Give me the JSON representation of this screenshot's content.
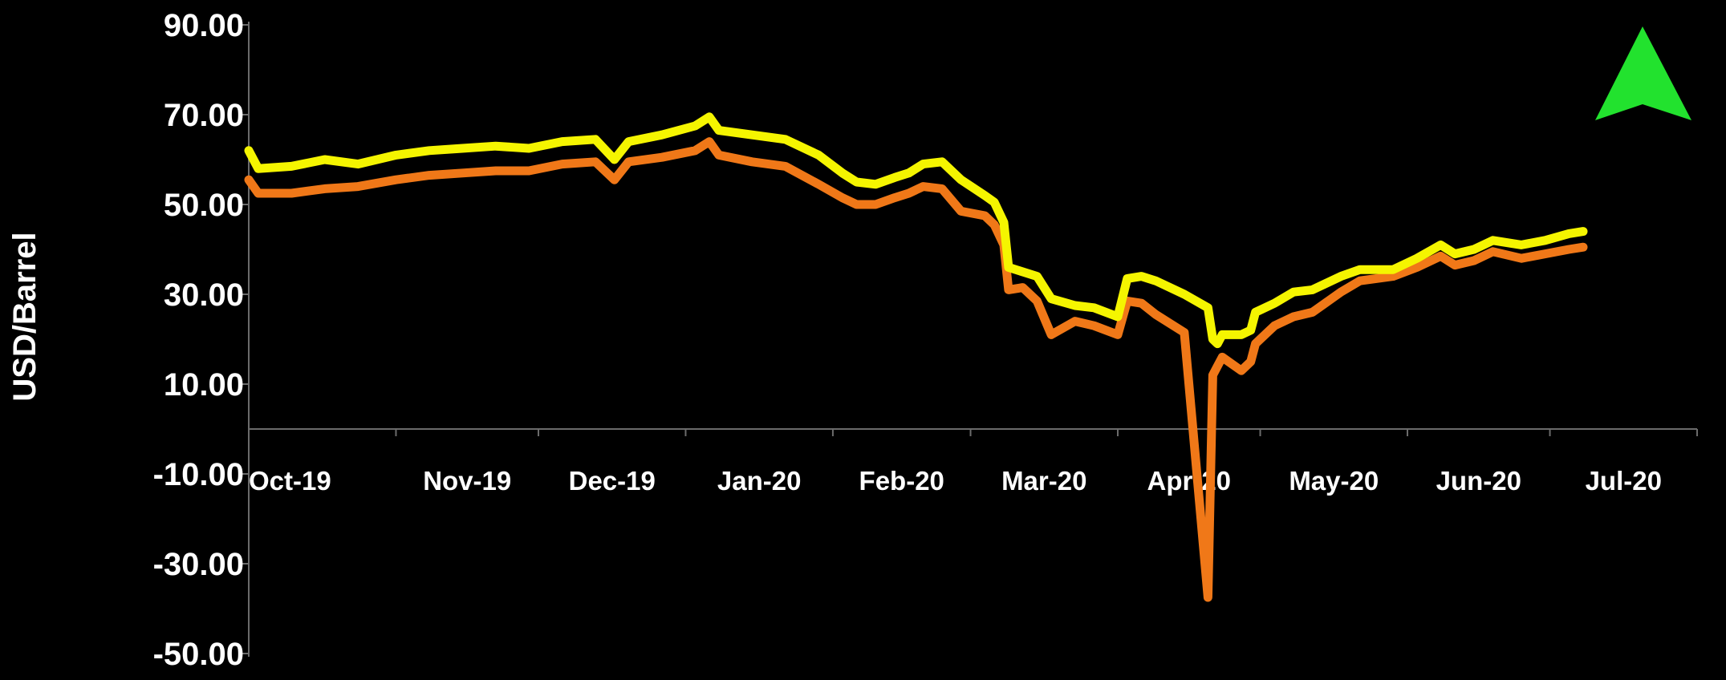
{
  "chart_data": {
    "type": "line",
    "title": "",
    "xlabel": "",
    "ylabel": "USD/Barrel",
    "ylim": [
      -50,
      90
    ],
    "yticks": [
      "90.00",
      "70.00",
      "50.00",
      "30.00",
      "10.00",
      "-10.00",
      "-30.00",
      "-50.00"
    ],
    "ytick_values": [
      90,
      70,
      50,
      30,
      10,
      -10,
      -30,
      -50
    ],
    "xticks": [
      "Oct-19",
      "Nov-19",
      "Dec-19",
      "Jan-20",
      "Feb-20",
      "Mar-20",
      "Apr-20",
      "May-20",
      "Jun-20",
      "Jul-20"
    ],
    "x_domain": [
      "2019-10-01",
      "2020-08-01"
    ],
    "grid": false,
    "legend": "none",
    "series": [
      {
        "color": "#f5f500",
        "points": [
          [
            "2019-10-01",
            62
          ],
          [
            "2019-10-03",
            58
          ],
          [
            "2019-10-10",
            58.5
          ],
          [
            "2019-10-17",
            60
          ],
          [
            "2019-10-24",
            59
          ],
          [
            "2019-11-01",
            61
          ],
          [
            "2019-11-08",
            62
          ],
          [
            "2019-11-15",
            62.5
          ],
          [
            "2019-11-22",
            63
          ],
          [
            "2019-11-29",
            62.5
          ],
          [
            "2019-12-06",
            64
          ],
          [
            "2019-12-13",
            64.5
          ],
          [
            "2019-12-17",
            60
          ],
          [
            "2019-12-20",
            64
          ],
          [
            "2019-12-27",
            65.5
          ],
          [
            "2020-01-03",
            67.5
          ],
          [
            "2020-01-06",
            69.5
          ],
          [
            "2020-01-08",
            66.5
          ],
          [
            "2020-01-15",
            65.5
          ],
          [
            "2020-01-22",
            64.5
          ],
          [
            "2020-01-29",
            61
          ],
          [
            "2020-02-03",
            57
          ],
          [
            "2020-02-06",
            55
          ],
          [
            "2020-02-10",
            54.5
          ],
          [
            "2020-02-14",
            56
          ],
          [
            "2020-02-17",
            57
          ],
          [
            "2020-02-20",
            59
          ],
          [
            "2020-02-24",
            59.5
          ],
          [
            "2020-02-28",
            55.5
          ],
          [
            "2020-03-04",
            52
          ],
          [
            "2020-03-06",
            50.5
          ],
          [
            "2020-03-08",
            46
          ],
          [
            "2020-03-09",
            36
          ],
          [
            "2020-03-12",
            35
          ],
          [
            "2020-03-15",
            34
          ],
          [
            "2020-03-18",
            29
          ],
          [
            "2020-03-23",
            27.5
          ],
          [
            "2020-03-27",
            27
          ],
          [
            "2020-04-01",
            25
          ],
          [
            "2020-04-03",
            33.5
          ],
          [
            "2020-04-06",
            34
          ],
          [
            "2020-04-09",
            33
          ],
          [
            "2020-04-15",
            30
          ],
          [
            "2020-04-20",
            27
          ],
          [
            "2020-04-21",
            20
          ],
          [
            "2020-04-22",
            19
          ],
          [
            "2020-04-23",
            21
          ],
          [
            "2020-04-27",
            21
          ],
          [
            "2020-04-29",
            22
          ],
          [
            "2020-04-30",
            26
          ],
          [
            "2020-05-04",
            28
          ],
          [
            "2020-05-08",
            30.5
          ],
          [
            "2020-05-12",
            31
          ],
          [
            "2020-05-18",
            34
          ],
          [
            "2020-05-22",
            35.5
          ],
          [
            "2020-05-29",
            35.5
          ],
          [
            "2020-06-03",
            38
          ],
          [
            "2020-06-08",
            41
          ],
          [
            "2020-06-11",
            39
          ],
          [
            "2020-06-15",
            40
          ],
          [
            "2020-06-19",
            42
          ],
          [
            "2020-06-25",
            41
          ],
          [
            "2020-06-30",
            42
          ],
          [
            "2020-07-05",
            43.5
          ],
          [
            "2020-07-08",
            44
          ]
        ]
      },
      {
        "color": "#f07818",
        "points": [
          [
            "2019-10-01",
            55.5
          ],
          [
            "2019-10-03",
            52.5
          ],
          [
            "2019-10-10",
            52.5
          ],
          [
            "2019-10-17",
            53.5
          ],
          [
            "2019-10-24",
            54
          ],
          [
            "2019-11-01",
            55.5
          ],
          [
            "2019-11-08",
            56.5
          ],
          [
            "2019-11-15",
            57
          ],
          [
            "2019-11-22",
            57.5
          ],
          [
            "2019-11-29",
            57.5
          ],
          [
            "2019-12-06",
            59
          ],
          [
            "2019-12-13",
            59.5
          ],
          [
            "2019-12-17",
            55.5
          ],
          [
            "2019-12-20",
            59.5
          ],
          [
            "2019-12-27",
            60.5
          ],
          [
            "2020-01-03",
            62
          ],
          [
            "2020-01-06",
            64
          ],
          [
            "2020-01-08",
            61
          ],
          [
            "2020-01-15",
            59.5
          ],
          [
            "2020-01-22",
            58.5
          ],
          [
            "2020-01-29",
            54.5
          ],
          [
            "2020-02-03",
            51.5
          ],
          [
            "2020-02-06",
            50
          ],
          [
            "2020-02-10",
            50
          ],
          [
            "2020-02-14",
            51.5
          ],
          [
            "2020-02-17",
            52.5
          ],
          [
            "2020-02-20",
            54
          ],
          [
            "2020-02-24",
            53.5
          ],
          [
            "2020-02-28",
            48.5
          ],
          [
            "2020-03-04",
            47.5
          ],
          [
            "2020-03-06",
            45.5
          ],
          [
            "2020-03-08",
            41
          ],
          [
            "2020-03-09",
            31
          ],
          [
            "2020-03-12",
            31.5
          ],
          [
            "2020-03-15",
            28.5
          ],
          [
            "2020-03-18",
            21
          ],
          [
            "2020-03-23",
            24
          ],
          [
            "2020-03-27",
            23
          ],
          [
            "2020-04-01",
            21
          ],
          [
            "2020-04-03",
            28.5
          ],
          [
            "2020-04-06",
            28
          ],
          [
            "2020-04-09",
            25.5
          ],
          [
            "2020-04-15",
            21.5
          ],
          [
            "2020-04-20",
            -37.5
          ],
          [
            "2020-04-21",
            12
          ],
          [
            "2020-04-22",
            14
          ],
          [
            "2020-04-23",
            16
          ],
          [
            "2020-04-27",
            13
          ],
          [
            "2020-04-29",
            15
          ],
          [
            "2020-04-30",
            19
          ],
          [
            "2020-05-04",
            23
          ],
          [
            "2020-05-08",
            25
          ],
          [
            "2020-05-12",
            26
          ],
          [
            "2020-05-18",
            30.5
          ],
          [
            "2020-05-22",
            33
          ],
          [
            "2020-05-29",
            34
          ],
          [
            "2020-06-03",
            36
          ],
          [
            "2020-06-08",
            38.5
          ],
          [
            "2020-06-11",
            36.5
          ],
          [
            "2020-06-15",
            37.5
          ],
          [
            "2020-06-19",
            39.5
          ],
          [
            "2020-06-25",
            38
          ],
          [
            "2020-06-30",
            39
          ],
          [
            "2020-07-05",
            40
          ],
          [
            "2020-07-08",
            40.5
          ]
        ]
      }
    ],
    "marker": {
      "type": "up-arrow",
      "color": "#22e22e"
    }
  }
}
